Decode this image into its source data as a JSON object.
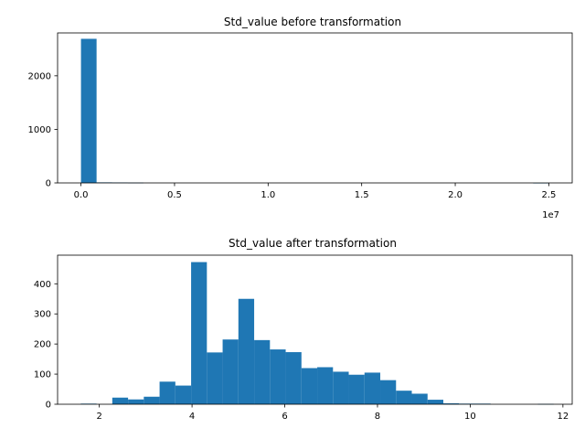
{
  "chart_data": [
    {
      "type": "bar",
      "title": "Std_value before transformation",
      "xlabel": "",
      "ylabel": "",
      "x_offset_label": "1e7",
      "xlim": [
        -1250000,
        26250000
      ],
      "ylim": [
        0,
        2800
      ],
      "xticks": [
        0,
        5000000,
        10000000,
        15000000,
        20000000,
        25000000
      ],
      "xtick_labels": [
        "0.0",
        "0.5",
        "1.0",
        "1.5",
        "2.0",
        "2.5"
      ],
      "yticks": [
        0,
        1000,
        2000
      ],
      "ytick_labels": [
        "0",
        "1000",
        "2000"
      ],
      "bin_start": 0,
      "bin_width": 833333,
      "values": [
        2690,
        10,
        8,
        5,
        0,
        0,
        0,
        0,
        0,
        0,
        0,
        0,
        0,
        0,
        0,
        0,
        0,
        0,
        0,
        0,
        0,
        0,
        0,
        0,
        0,
        0,
        0,
        0,
        0,
        1
      ],
      "color": "#1f77b4"
    },
    {
      "type": "bar",
      "title": "Std_value after transformation",
      "xlabel": "",
      "ylabel": "",
      "xlim": [
        1.1,
        12.2
      ],
      "ylim": [
        0,
        495
      ],
      "xticks": [
        2,
        4,
        6,
        8,
        10,
        12
      ],
      "xtick_labels": [
        "2",
        "4",
        "6",
        "8",
        "10",
        "12"
      ],
      "yticks": [
        0,
        100,
        200,
        300,
        400
      ],
      "ytick_labels": [
        "0",
        "100",
        "200",
        "300",
        "400"
      ],
      "bin_start": 1.6,
      "bin_width": 0.34,
      "values": [
        2,
        0,
        22,
        16,
        25,
        75,
        62,
        472,
        172,
        215,
        350,
        213,
        182,
        173,
        120,
        123,
        108,
        98,
        105,
        80,
        45,
        35,
        15,
        3,
        2,
        2,
        0,
        0,
        0,
        1
      ],
      "color": "#1f77b4"
    }
  ]
}
